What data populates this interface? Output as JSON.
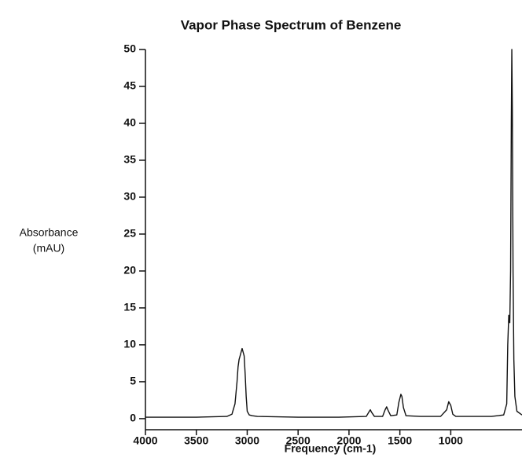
{
  "chart_data": {
    "type": "line",
    "title": "Vapor Phase Spectrum of Benzene",
    "x_label": "Frequency (cm-1)",
    "y_label": [
      "Absorbance",
      "(mAU)"
    ],
    "x": [
      4000,
      3500,
      3200,
      3150,
      3120,
      3100,
      3090,
      3080,
      3070,
      3060,
      3050,
      3040,
      3030,
      3020,
      3010,
      3000,
      2980,
      2950,
      2900,
      2500,
      2100,
      1830,
      1800,
      1790,
      1780,
      1750,
      1670,
      1645,
      1630,
      1615,
      1590,
      1530,
      1510,
      1490,
      1480,
      1465,
      1440,
      1300,
      1100,
      1040,
      1020,
      1000,
      980,
      950,
      600,
      480,
      450,
      440,
      430,
      420,
      412,
      405,
      400,
      395,
      388,
      380,
      370,
      350,
      300
    ],
    "series": [
      {
        "name": "Absorbance",
        "color": "#111111",
        "values": [
          0.2,
          0.2,
          0.3,
          0.6,
          2,
          5,
          7,
          8,
          8.5,
          9,
          9.5,
          9,
          8.5,
          6,
          3,
          1,
          0.5,
          0.4,
          0.3,
          0.2,
          0.2,
          0.3,
          1.0,
          1.2,
          0.9,
          0.3,
          0.3,
          1.2,
          1.6,
          1.1,
          0.4,
          0.5,
          2.2,
          3.3,
          3.0,
          1.5,
          0.4,
          0.3,
          0.3,
          1.2,
          2.3,
          1.8,
          0.6,
          0.3,
          0.3,
          0.5,
          2,
          10,
          14,
          13,
          20,
          40,
          50,
          42,
          20,
          8,
          3,
          1,
          0.5
        ]
      }
    ],
    "xlim": [
      4000,
      300
    ],
    "xticks": [
      4000,
      3500,
      3000,
      2500,
      2000,
      1500,
      1000
    ],
    "ylim": [
      -1.5,
      50
    ],
    "yticks": [
      0,
      5,
      10,
      15,
      20,
      25,
      30,
      35,
      40,
      45,
      50
    ]
  }
}
